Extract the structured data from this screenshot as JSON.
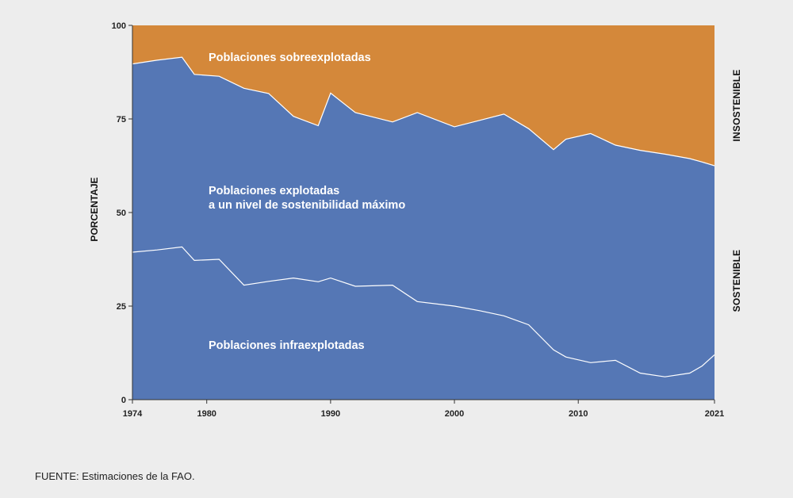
{
  "chart_data": {
    "type": "area",
    "title": "",
    "xlabel": "",
    "ylabel": "PORCENTAJE",
    "xlim": [
      1974,
      2021
    ],
    "ylim": [
      0,
      100
    ],
    "x_ticks": [
      1974,
      1980,
      1990,
      2000,
      2010,
      2021
    ],
    "y_ticks": [
      0,
      25,
      50,
      75,
      100
    ],
    "x": [
      1974,
      1976,
      1978,
      1979,
      1981,
      1983,
      1985,
      1987,
      1989,
      1990,
      1992,
      1995,
      1997,
      2000,
      2002,
      2004,
      2006,
      2008,
      2009,
      2011,
      2013,
      2015,
      2017,
      2019,
      2020,
      2021
    ],
    "series": [
      {
        "name": "Poblaciones infraexplotadas",
        "color": "#5577b5",
        "values": [
          39.4,
          40.0,
          40.8,
          37.2,
          37.5,
          30.6,
          31.6,
          32.5,
          31.5,
          32.5,
          30.3,
          30.6,
          26.2,
          25.0,
          23.8,
          22.4,
          20.0,
          13.3,
          11.4,
          9.9,
          10.5,
          7.1,
          6.1,
          7.1,
          9.0,
          12.0
        ]
      },
      {
        "name": "Poblaciones explotadas a un nivel de sostenibilidad máximo",
        "color": "#5577b5",
        "cumulative_boundary": [
          89.7,
          90.7,
          91.5,
          86.9,
          86.4,
          83.2,
          81.8,
          75.7,
          73.2,
          81.9,
          76.7,
          74.2,
          76.7,
          72.9,
          74.6,
          76.3,
          72.4,
          66.8,
          69.6,
          71.1,
          68.0,
          66.6,
          65.6,
          64.4,
          63.5,
          62.5
        ]
      },
      {
        "name": "Poblaciones sobreexplotadas",
        "color": "#d4883a",
        "upper_boundary": 100
      }
    ],
    "annotations": {
      "overexploited": "Poblaciones sobreexplotadas",
      "max_sustainable_line1": "Poblaciones explotadas",
      "max_sustainable_line2": "a un nivel de sostenibilidad máximo",
      "underexploited": "Poblaciones infraexplotadas",
      "right_top": "INSOSTENIBLE",
      "right_bottom": "SOSTENIBLE"
    }
  },
  "source": "FUENTE: Estimaciones de la FAO."
}
